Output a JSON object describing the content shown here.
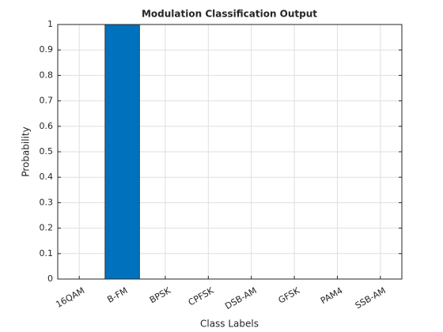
{
  "chart_data": {
    "type": "bar",
    "title": "Modulation Classification Output",
    "xlabel": "Class Labels",
    "ylabel": "Probability",
    "categories": [
      "16QAM",
      "B-FM",
      "BPSK",
      "CPFSK",
      "DSB-AM",
      "GFSK",
      "PAM4",
      "SSB-AM"
    ],
    "values": [
      0,
      1,
      0,
      0,
      0,
      0,
      0,
      0
    ],
    "color": "#0072bd",
    "ylim": [
      0,
      1
    ],
    "yticks": [
      0,
      0.1,
      0.2,
      0.3,
      0.4,
      0.5,
      0.6,
      0.7,
      0.8,
      0.9,
      1
    ],
    "grid": true
  }
}
